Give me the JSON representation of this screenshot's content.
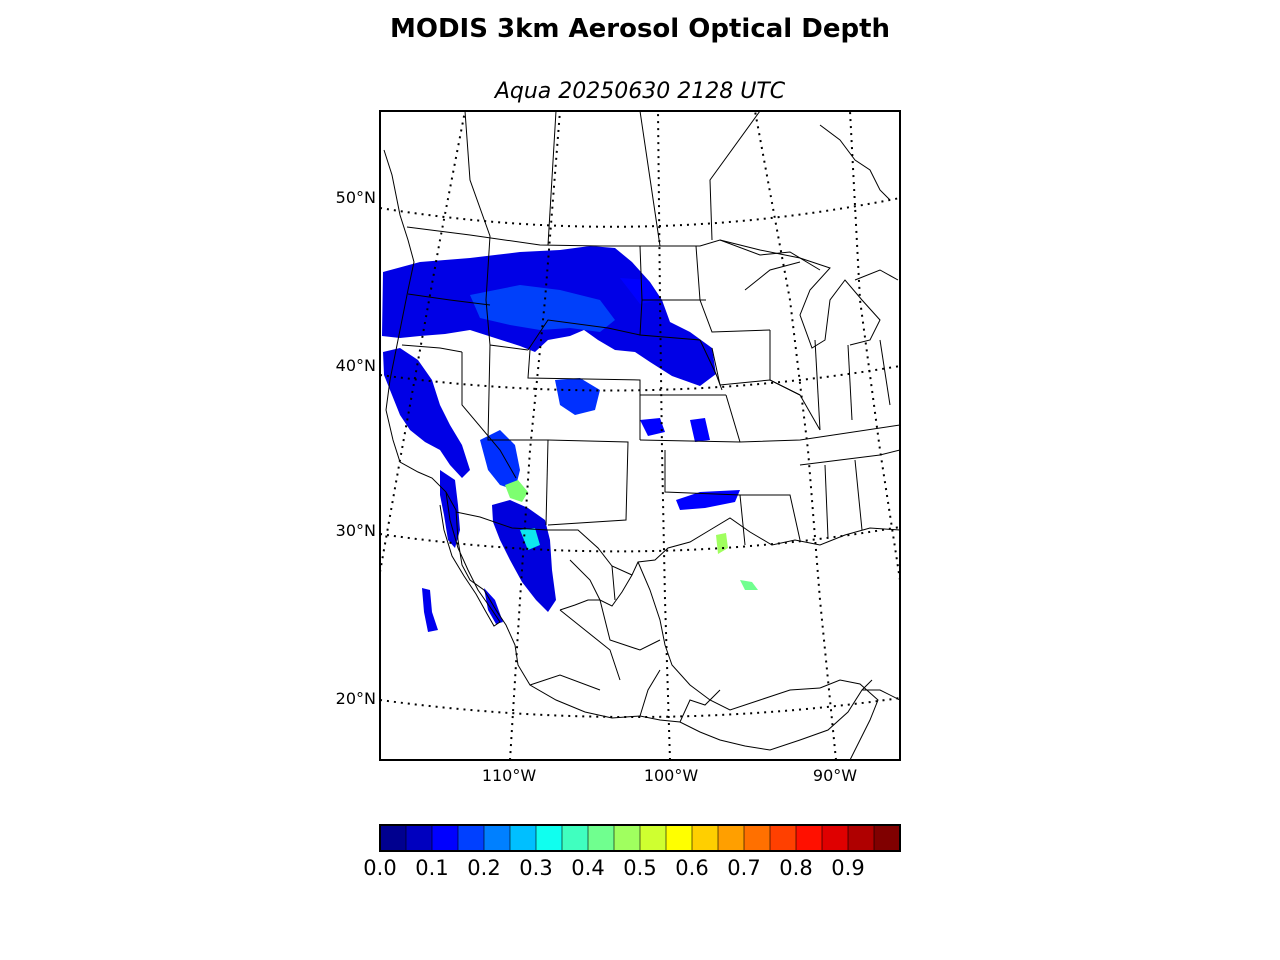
{
  "title": "MODIS 3km Aerosol Optical Depth",
  "subtitle": "Aqua 20250630 2128 UTC",
  "map": {
    "latitude_labels": [
      "50°N",
      "40°N",
      "30°N",
      "20°N"
    ],
    "longitude_labels": [
      "110°W",
      "100°W",
      "90°W"
    ],
    "graticule": "dotted",
    "features": [
      "coastlines",
      "country borders",
      "US state borders",
      "Mexican state borders",
      "Great Lakes"
    ],
    "data_variable": "aerosol optical depth"
  },
  "colorbar": {
    "colormap": "jet",
    "range": [
      0.0,
      1.0
    ],
    "tick_labels": [
      "0.0",
      "0.1",
      "0.2",
      "0.3",
      "0.4",
      "0.5",
      "0.6",
      "0.7",
      "0.8",
      "0.9"
    ],
    "colors": [
      "#00008f",
      "#0000bf",
      "#0000ff",
      "#0040ff",
      "#0080ff",
      "#00bfff",
      "#10ffef",
      "#40ffbf",
      "#70ff8f",
      "#a0ff5f",
      "#cfff30",
      "#ffff00",
      "#ffcf00",
      "#ff9f00",
      "#ff7000",
      "#ff4000",
      "#ff1000",
      "#df0000",
      "#af0000",
      "#800000"
    ]
  }
}
